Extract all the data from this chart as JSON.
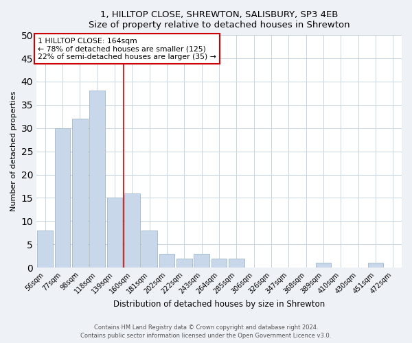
{
  "title": "1, HILLTOP CLOSE, SHREWTON, SALISBURY, SP3 4EB",
  "subtitle": "Size of property relative to detached houses in Shrewton",
  "xlabel": "Distribution of detached houses by size in Shrewton",
  "ylabel": "Number of detached properties",
  "bar_labels": [
    "56sqm",
    "77sqm",
    "98sqm",
    "118sqm",
    "139sqm",
    "160sqm",
    "181sqm",
    "202sqm",
    "222sqm",
    "243sqm",
    "264sqm",
    "285sqm",
    "306sqm",
    "326sqm",
    "347sqm",
    "368sqm",
    "389sqm",
    "410sqm",
    "430sqm",
    "451sqm",
    "472sqm"
  ],
  "bar_values": [
    8,
    30,
    32,
    38,
    15,
    16,
    8,
    3,
    2,
    3,
    2,
    2,
    0,
    0,
    0,
    0,
    1,
    0,
    0,
    1,
    0
  ],
  "bar_color": "#c8d8ea",
  "bar_edge_color": "#a0b8cc",
  "property_line_x": 4.5,
  "annotation_title": "1 HILLTOP CLOSE: 164sqm",
  "annotation_line1": "← 78% of detached houses are smaller (125)",
  "annotation_line2": "22% of semi-detached houses are larger (35) →",
  "annotation_box_color": "#ffffff",
  "annotation_box_edge": "#cc0000",
  "vline_color": "#cc0000",
  "ylim": [
    0,
    50
  ],
  "yticks": [
    0,
    5,
    10,
    15,
    20,
    25,
    30,
    35,
    40,
    45,
    50
  ],
  "footer_line1": "Contains HM Land Registry data © Crown copyright and database right 2024.",
  "footer_line2": "Contains public sector information licensed under the Open Government Licence v3.0.",
  "background_color": "#eef2f7",
  "plot_background_color": "#ffffff",
  "grid_color": "#c8d4de"
}
